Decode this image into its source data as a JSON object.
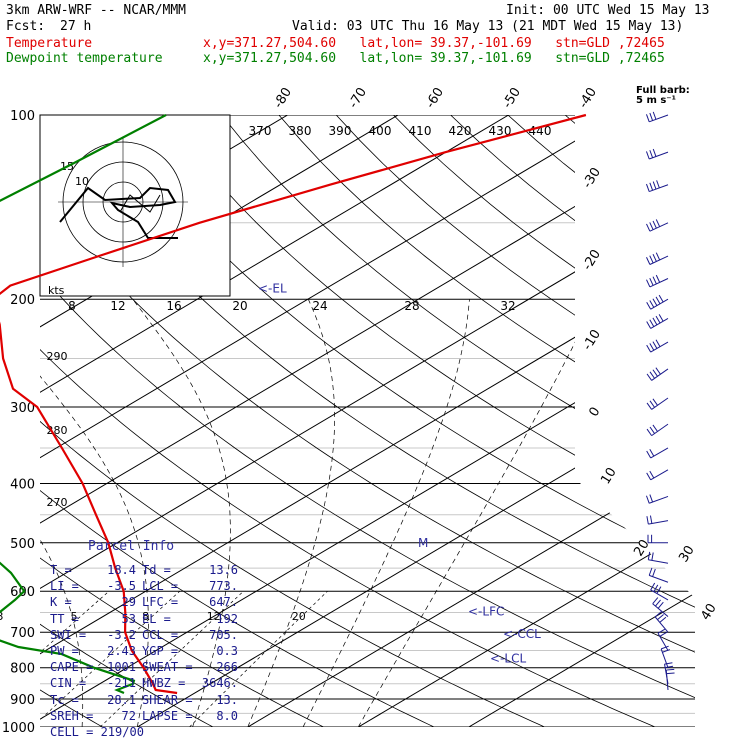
{
  "header": {
    "model": "3km ARW-WRF -- NCAR/MMM",
    "init": "Init: 00 UTC Wed 15 May 13",
    "fcst_label": "Fcst:",
    "fcst_value": "27 h",
    "valid": "Valid: 03 UTC Thu 16 May 13 (21 MDT Wed 15 May 13)",
    "temp_label": "Temperature",
    "dew_label": "Dewpoint temperature",
    "location": "x,y=371.27,504.60   lat,lon= 39.37,-101.69   stn=GLD ,72465"
  },
  "barb_legend": {
    "line1": "Full barb:",
    "line2": "5 m s⁻¹"
  },
  "chart_data": {
    "type": "skew-t",
    "y_axis": {
      "scale": "log",
      "ylim": [
        1000,
        100
      ],
      "tick_labels": [
        "100",
        "200",
        "300",
        "400",
        "500",
        "600",
        "700",
        "800",
        "900",
        "1000"
      ],
      "ticks": [
        100,
        200,
        300,
        400,
        500,
        600,
        700,
        800,
        900,
        1000
      ]
    },
    "isotherm_labels": [
      "-80",
      "-70",
      "-60",
      "-50",
      "-40",
      "-30",
      "-20",
      "-10",
      "0",
      "10",
      "20",
      "30",
      "40"
    ],
    "isotherm_values": [
      -80,
      -70,
      -60,
      -50,
      -40,
      -30,
      -20,
      -10,
      0,
      10,
      20,
      30,
      40
    ],
    "theta_labels": [
      "370",
      "380",
      "390",
      "400",
      "410",
      "420",
      "430",
      "440"
    ],
    "theta_side_labels": [
      "290",
      "280",
      "270"
    ],
    "mixing_ratio_labels": [
      "2",
      "3",
      "5",
      "8",
      "12",
      "20"
    ],
    "hodograph": {
      "ring_labels": [
        "15",
        "10"
      ],
      "x_labels": [
        "kts",
        "8",
        "12",
        "16",
        "20",
        "24",
        "28",
        "32"
      ]
    },
    "temperature": {
      "name": "Temperature",
      "color": "#e00000",
      "p": [
        880,
        870,
        850,
        800,
        750,
        700,
        650,
        600,
        550,
        500,
        450,
        400,
        350,
        300,
        280,
        250,
        220,
        200,
        190,
        170,
        150,
        130,
        115,
        100
      ],
      "t": [
        18.4,
        16,
        14.8,
        11.5,
        7.8,
        4.4,
        1.4,
        -2,
        -6.3,
        -10.8,
        -16.2,
        -22.2,
        -29.5,
        -38,
        -43,
        -48.5,
        -54,
        -58.5,
        -59,
        -55.5,
        -51.5,
        -45.5,
        -40,
        -33
      ]
    },
    "dewpoint": {
      "name": "Dewpoint temperature",
      "color": "#008000",
      "p": [
        880,
        870,
        850,
        840,
        800,
        760,
        740,
        720,
        700,
        680,
        650,
        620,
        600,
        560,
        520,
        500,
        460,
        430,
        400,
        370,
        350,
        330,
        300,
        270,
        250,
        220,
        200,
        180,
        160,
        140,
        120,
        100
      ],
      "td": [
        13.6,
        12.5,
        13,
        12.6,
        7,
        2,
        -3,
        -6,
        -9,
        -10,
        -10,
        -10.5,
        -11,
        -15,
        -20,
        -23.5,
        -27,
        -30,
        -33,
        -36.5,
        -40,
        -43,
        -44,
        -49,
        -53,
        -58,
        -64,
        -67,
        -70,
        -73,
        -72,
        -71
      ]
    },
    "annotations": [
      {
        "text": "<-EL",
        "p": 192
      },
      {
        "text": "<-LFC",
        "p": 647
      },
      {
        "text": "<-CCL",
        "p": 705
      },
      {
        "text": "<-LCL",
        "p": 773
      },
      {
        "text": "M",
        "p": 500
      }
    ],
    "wind_barbs": {
      "units": "m/s",
      "p": [
        100,
        115,
        130,
        150,
        170,
        185,
        200,
        215,
        235,
        260,
        290,
        320,
        350,
        380,
        420,
        460,
        500,
        540,
        580,
        620,
        660,
        700,
        750,
        800,
        850,
        870
      ],
      "speed_kt": [
        30,
        30,
        35,
        35,
        40,
        40,
        45,
        45,
        40,
        35,
        30,
        25,
        20,
        20,
        15,
        15,
        15,
        20,
        20,
        25,
        25,
        25,
        20,
        20,
        15,
        15
      ],
      "direction_deg": [
        250,
        250,
        250,
        245,
        245,
        245,
        240,
        240,
        240,
        235,
        235,
        235,
        240,
        240,
        250,
        260,
        270,
        280,
        290,
        300,
        310,
        320,
        330,
        340,
        350,
        355
      ]
    }
  },
  "parcel_info": {
    "title": "Parcel Info",
    "rows": [
      {
        "k1": "T",
        "v1": "18.4",
        "k2": "Td",
        "v2": "13.6"
      },
      {
        "k1": "LI",
        "v1": "-3.5",
        "k2": "LCL",
        "v2": "773."
      },
      {
        "k1": "K",
        "v1": "29",
        "k2": "LFC",
        "v2": "647."
      },
      {
        "k1": "TT",
        "v1": "53",
        "k2": "EL",
        "v2": "192"
      },
      {
        "k1": "SWI",
        "v1": "-3.2",
        "k2": "CCL",
        "v2": "705."
      },
      {
        "k1": "PW",
        "v1": "2.43",
        "k2": "YGP",
        "v2": "0.3"
      },
      {
        "k1": "CAPE",
        "v1": "1001",
        "k2": "SWEAT",
        "v2": "266"
      },
      {
        "k1": "CIN",
        "v1": "-211",
        "k2": "HWBZ",
        "v2": "3646."
      },
      {
        "k1": "Tc",
        "v1": "28.1",
        "k2": "SHEAR",
        "v2": "13."
      },
      {
        "k1": "SREH",
        "v1": "72",
        "k2": "LAPSE",
        "v2": "8.0"
      }
    ],
    "cell_label": "CELL",
    "cell_value": "219/00"
  }
}
